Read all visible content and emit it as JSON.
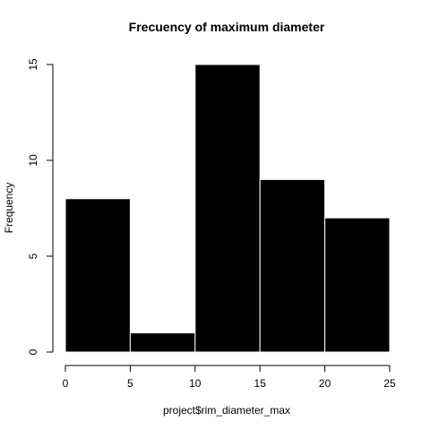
{
  "chart_data": {
    "type": "bar",
    "title": "Frecuency of maximum diameter",
    "xlabel": "project$rim_diameter_max",
    "ylabel": "Frequency",
    "bins": [
      {
        "start": 0,
        "end": 5,
        "count": 8
      },
      {
        "start": 5,
        "end": 10,
        "count": 1
      },
      {
        "start": 10,
        "end": 15,
        "count": 15
      },
      {
        "start": 15,
        "end": 20,
        "count": 9
      },
      {
        "start": 20,
        "end": 25,
        "count": 7
      }
    ],
    "x_ticks": [
      0,
      5,
      10,
      15,
      20,
      25
    ],
    "y_ticks": [
      0,
      5,
      10,
      15
    ],
    "xlim": [
      0,
      25
    ],
    "ylim": [
      0,
      15
    ],
    "bar_fill": "#000000",
    "bar_border": "#ffffff",
    "grid": false,
    "legend": "none"
  }
}
